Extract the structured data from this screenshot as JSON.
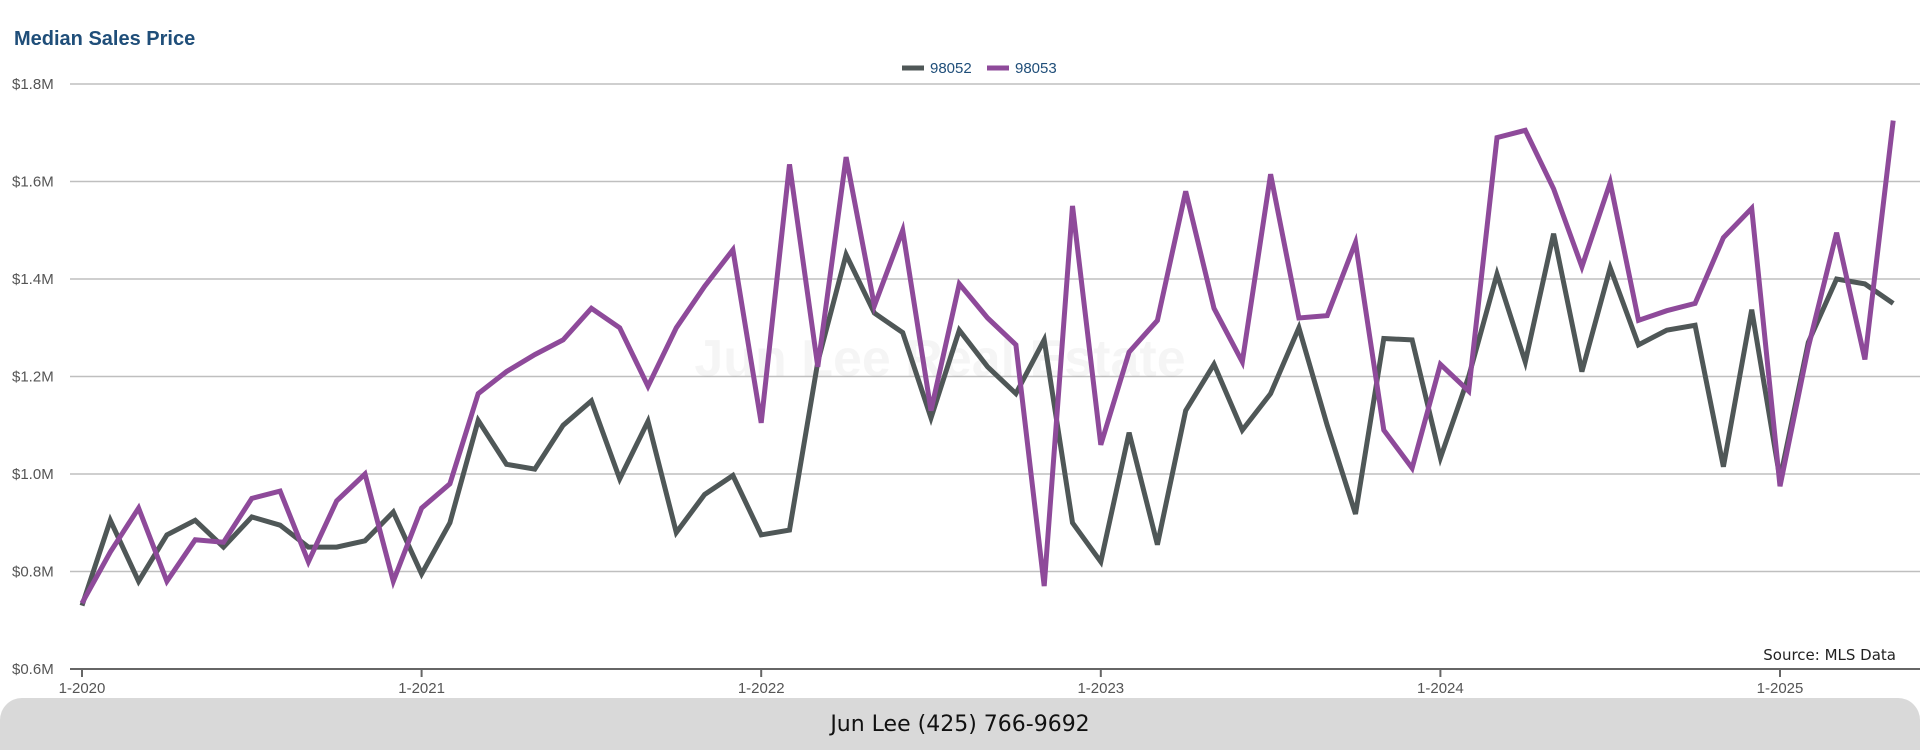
{
  "chart_data": {
    "type": "line",
    "title": "Median Sales Price",
    "xlabel": "",
    "ylabel": "",
    "y_ticks": [
      "$0.6M",
      "$0.8M",
      "$1.0M",
      "$1.2M",
      "$1.4M",
      "$1.6M",
      "$1.8M"
    ],
    "y_tick_values": [
      0.6,
      0.8,
      1.0,
      1.2,
      1.4,
      1.6,
      1.8
    ],
    "ylim": [
      0.6,
      1.8
    ],
    "x_ticks": [
      "1-2020",
      "1-2021",
      "1-2022",
      "1-2023",
      "1-2024",
      "1-2025"
    ],
    "x_tick_months": [
      "2020-01",
      "2021-01",
      "2022-01",
      "2023-01",
      "2024-01",
      "2025-01"
    ],
    "x_start": "2020-01",
    "x_end": "2025-05",
    "grid": true,
    "legend_position": "top-center",
    "watermark": "Jun Lee Real Estate",
    "series": [
      {
        "name": "98052",
        "color": "#4f5757",
        "values": [
          0.73,
          0.905,
          0.78,
          0.875,
          0.905,
          0.85,
          0.912,
          0.895,
          0.85,
          0.85,
          0.863,
          0.922,
          0.795,
          0.9,
          1.11,
          1.02,
          1.01,
          1.1,
          1.15,
          0.99,
          1.108,
          0.88,
          0.958,
          0.997,
          0.875,
          0.885,
          1.23,
          1.45,
          1.33,
          1.29,
          1.115,
          1.295,
          1.22,
          1.165,
          1.275,
          0.9,
          0.82,
          1.085,
          0.855,
          1.13,
          1.225,
          1.09,
          1.165,
          1.3,
          1.1,
          0.918,
          1.278,
          1.275,
          1.033,
          1.2,
          1.41,
          1.23,
          1.493,
          1.21,
          1.423,
          1.265,
          1.295,
          1.305,
          1.015,
          1.337,
          0.99,
          1.27,
          1.4,
          1.39,
          1.35
        ]
      },
      {
        "name": "98053",
        "color": "#8e4a9a",
        "values": [
          0.735,
          0.84,
          0.93,
          0.78,
          0.865,
          0.86,
          0.95,
          0.965,
          0.82,
          0.945,
          1.0,
          0.78,
          0.93,
          0.98,
          1.165,
          1.21,
          1.245,
          1.275,
          1.34,
          1.3,
          1.18,
          1.3,
          1.385,
          1.46,
          1.105,
          1.635,
          1.22,
          1.65,
          1.345,
          1.5,
          1.13,
          1.39,
          1.32,
          1.265,
          0.77,
          1.55,
          1.06,
          1.25,
          1.315,
          1.58,
          1.34,
          1.23,
          1.615,
          1.32,
          1.325,
          1.475,
          1.09,
          1.012,
          1.225,
          1.17,
          1.69,
          1.705,
          1.585,
          1.425,
          1.598,
          1.315,
          1.335,
          1.35,
          1.485,
          1.545,
          0.975,
          1.26,
          1.495,
          1.235,
          1.725
        ]
      }
    ]
  },
  "source_text": "Source: MLS Data",
  "footer_text": "Jun Lee (425) 766-9692",
  "colors": {
    "title": "#1f4e79",
    "grid": "#bfbfbf",
    "axis": "#666666",
    "footer_bg": "#d9d9d9"
  }
}
